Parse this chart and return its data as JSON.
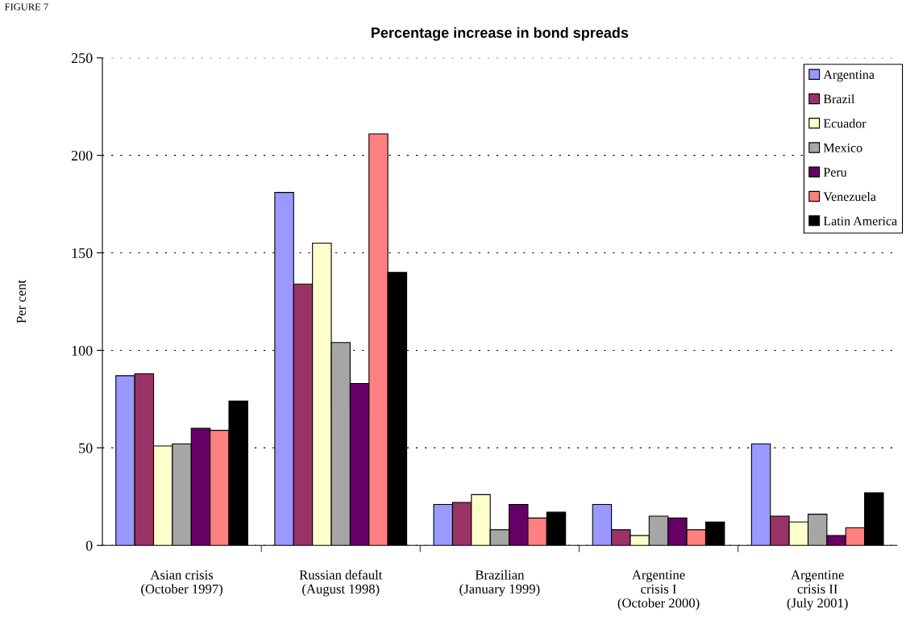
{
  "chart_data": {
    "type": "bar",
    "title": "Percentage increase in bond spreads",
    "ylabel": "Per cent",
    "annotations": [
      "FIGURE 7"
    ],
    "categories": [
      "Asian crisis\n(October 1997)",
      "Russian default\n(August 1998)",
      "Brazilian\n(January 1999)",
      "Argentine\ncrisis I\n(October 2000)",
      "Argentine\ncrisis II\n(July 2001)"
    ],
    "series": [
      {
        "name": "Argentina",
        "color": "#9999ff",
        "values": [
          87,
          181,
          21,
          21,
          52
        ]
      },
      {
        "name": "Brazil",
        "color": "#993366",
        "values": [
          88,
          134,
          22,
          8,
          15
        ]
      },
      {
        "name": "Ecuador",
        "color": "#ffffcc",
        "values": [
          51,
          155,
          26,
          5,
          12
        ]
      },
      {
        "name": "Mexico",
        "color": "#a6a6a6",
        "values": [
          52,
          104,
          8,
          15,
          16
        ]
      },
      {
        "name": "Peru",
        "color": "#660066",
        "values": [
          60,
          83,
          21,
          14,
          5
        ]
      },
      {
        "name": "Venezuela",
        "color": "#ff8080",
        "values": [
          59,
          211,
          14,
          8,
          9
        ]
      },
      {
        "name": "Latin America",
        "color": "#000000",
        "values": [
          74,
          140,
          17,
          12,
          27
        ]
      }
    ],
    "ylim": [
      0,
      250
    ],
    "yticks": [
      0,
      50,
      100,
      150,
      200,
      250
    ],
    "grid": "y",
    "legend": "top right"
  }
}
